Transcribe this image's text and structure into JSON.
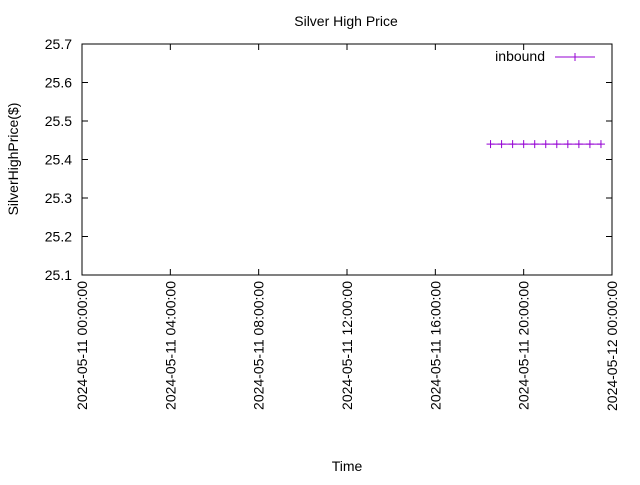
{
  "chart_data": {
    "type": "line",
    "title": "Silver High Price",
    "xlabel": "Time",
    "ylabel": "SilverHighPrice($)",
    "x_axis_kind": "datetime",
    "xlim": [
      "2024-05-11 00:00:00",
      "2024-05-12 00:00:00"
    ],
    "ylim": [
      25.1,
      25.7
    ],
    "x_ticks": [
      "2024-05-11 00:00:00",
      "2024-05-11 04:00:00",
      "2024-05-11 08:00:00",
      "2024-05-11 12:00:00",
      "2024-05-11 16:00:00",
      "2024-05-11 20:00:00",
      "2024-05-12 00:00:00"
    ],
    "y_ticks": [
      "25.1",
      "25.2",
      "25.3",
      "25.4",
      "25.5",
      "25.6",
      "25.7"
    ],
    "grid": false,
    "legend_position": "top-right",
    "series": [
      {
        "name": "inbound",
        "color": "#9400d3",
        "marker": "plus",
        "x": [
          "2024-05-11 18:30:00",
          "2024-05-11 19:00:00",
          "2024-05-11 19:30:00",
          "2024-05-11 20:00:00",
          "2024-05-11 20:30:00",
          "2024-05-11 21:00:00",
          "2024-05-11 21:30:00",
          "2024-05-11 22:00:00",
          "2024-05-11 22:30:00",
          "2024-05-11 23:00:00",
          "2024-05-11 23:30:00"
        ],
        "y": [
          25.44,
          25.44,
          25.44,
          25.44,
          25.44,
          25.44,
          25.44,
          25.44,
          25.44,
          25.44,
          25.44
        ]
      }
    ]
  }
}
